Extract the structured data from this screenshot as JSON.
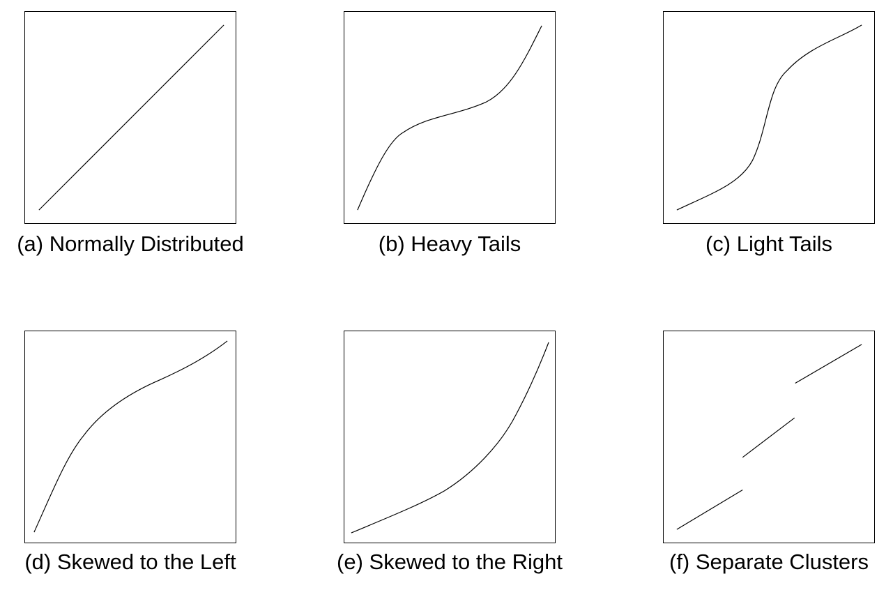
{
  "panels": [
    {
      "id": "a",
      "caption": "(a) Normally Distributed",
      "shape": "normally-distributed"
    },
    {
      "id": "b",
      "caption": "(b) Heavy Tails",
      "shape": "heavy-tails"
    },
    {
      "id": "c",
      "caption": "(c) Light Tails",
      "shape": "light-tails"
    },
    {
      "id": "d",
      "caption": "(d) Skewed to the Left",
      "shape": "skewed-left"
    },
    {
      "id": "e",
      "caption": "(e) Skewed to the Right",
      "shape": "skewed-right"
    },
    {
      "id": "f",
      "caption": "(f) Separate Clusters",
      "shape": "separate-clusters"
    }
  ]
}
